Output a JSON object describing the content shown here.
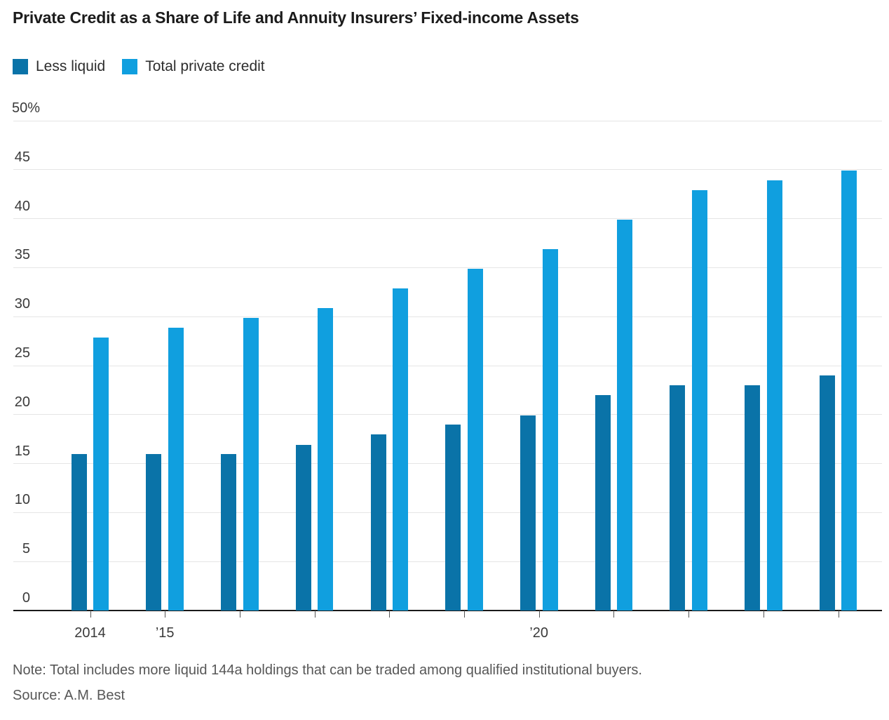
{
  "title": "Private Credit as a Share of Life and Annuity Insurers’ Fixed-income Assets",
  "legend": [
    {
      "label": "Less liquid",
      "color": "#0a73a8"
    },
    {
      "label": "Total private credit",
      "color": "#109fdf"
    }
  ],
  "chart_data": {
    "type": "bar",
    "title": "Private Credit as a Share of Life and Annuity Insurers’ Fixed-income Assets",
    "categories": [
      2014,
      2015,
      2016,
      2017,
      2018,
      2019,
      2020,
      2021,
      2022,
      2023,
      2024
    ],
    "series": [
      {
        "name": "Less liquid",
        "color": "#0a73a8",
        "values": [
          16.0,
          16.0,
          16.0,
          16.9,
          18.0,
          19.0,
          19.9,
          22.0,
          23.0,
          23.0,
          24.0
        ]
      },
      {
        "name": "Total private credit",
        "color": "#109fdf",
        "values": [
          27.9,
          28.9,
          29.9,
          30.9,
          32.9,
          34.9,
          36.9,
          39.9,
          42.9,
          43.9,
          44.9
        ]
      }
    ],
    "ylim": [
      0,
      50
    ],
    "xlabel": "",
    "ylabel": "",
    "grid": true,
    "legend_position": "top-left",
    "y_ticks": [
      {
        "value": 0,
        "label": "0"
      },
      {
        "value": 5,
        "label": "5"
      },
      {
        "value": 10,
        "label": "10"
      },
      {
        "value": 15,
        "label": "15"
      },
      {
        "value": 20,
        "label": "20"
      },
      {
        "value": 25,
        "label": "25"
      },
      {
        "value": 30,
        "label": "30"
      },
      {
        "value": 35,
        "label": "35"
      },
      {
        "value": 40,
        "label": "40"
      },
      {
        "value": 45,
        "label": "45"
      },
      {
        "value": 50,
        "label": "50%"
      }
    ],
    "x_tick_labels": [
      {
        "index": 0,
        "label": "2014"
      },
      {
        "index": 1,
        "label": "’15"
      },
      {
        "index": 6,
        "label": "’20"
      }
    ]
  },
  "footer": {
    "note": "Note: Total includes more liquid 144a holdings that can be traded among qualified institutional buyers.",
    "source": "Source: A.M. Best"
  }
}
